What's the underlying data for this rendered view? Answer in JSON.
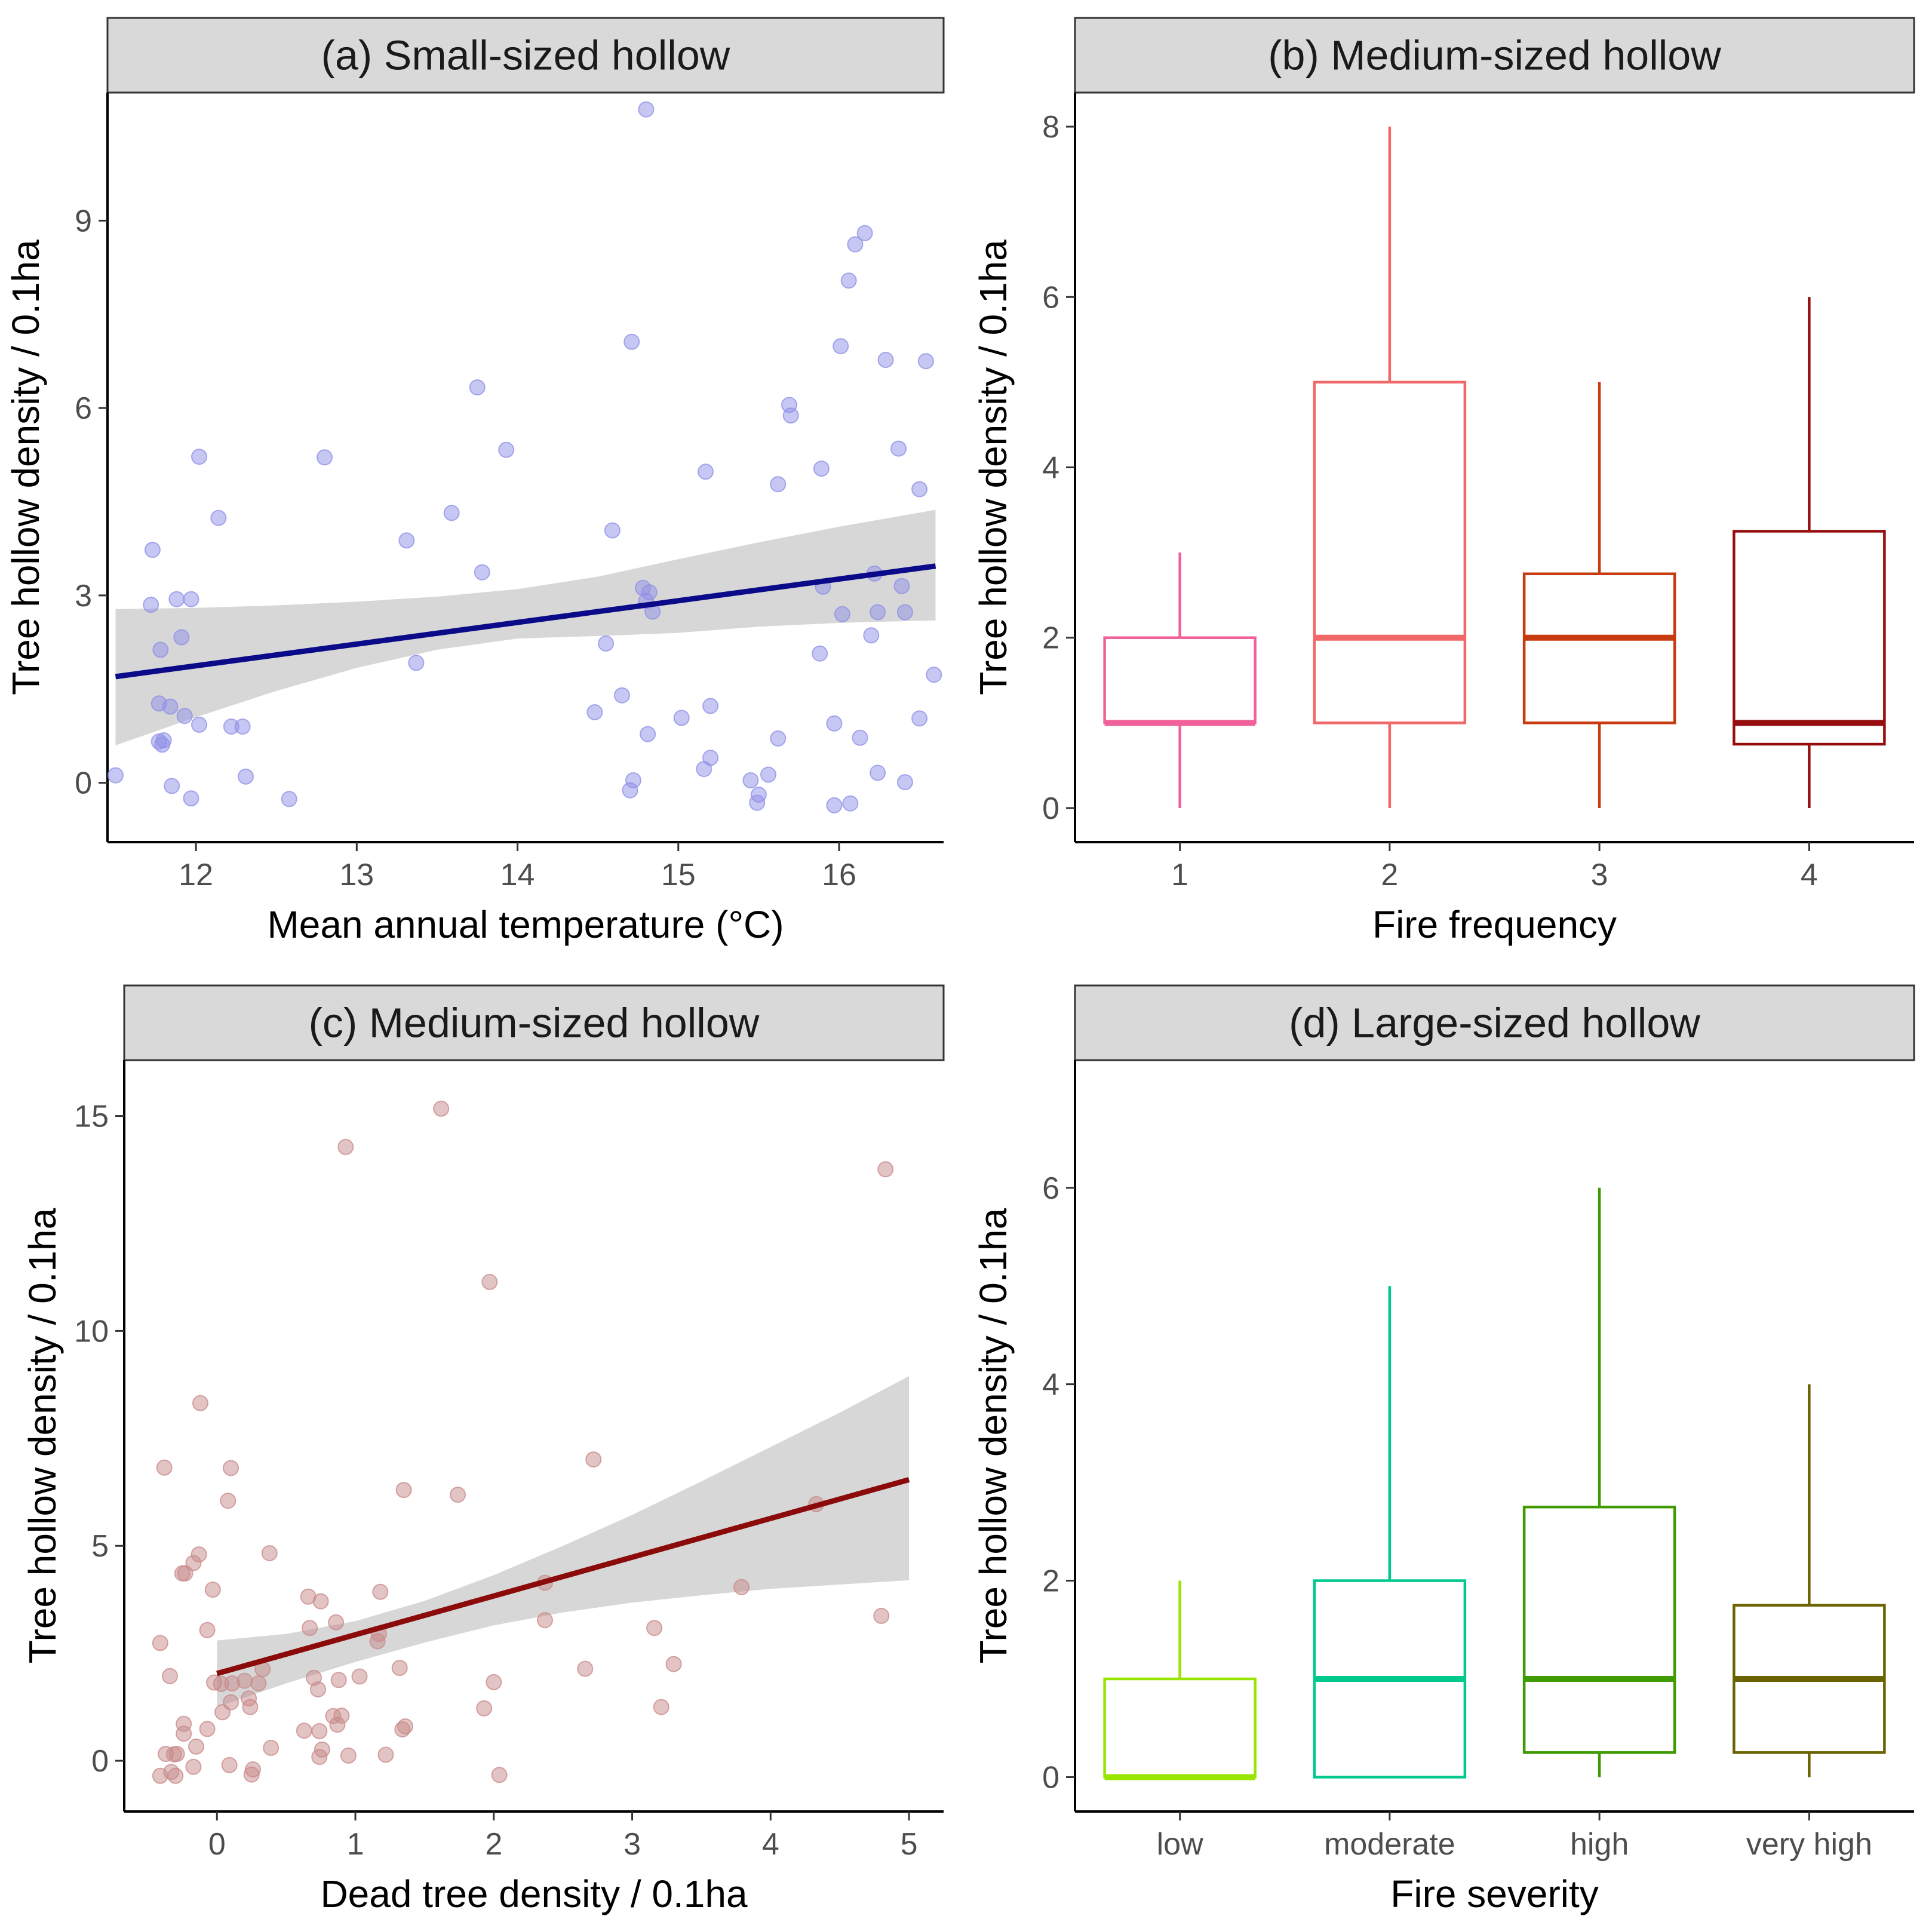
{
  "chart_data": [
    {
      "id": "a",
      "type": "scatter",
      "title": "(a) Small-sized hollow",
      "xlabel": "Mean annual temperature (°C)",
      "ylabel": "Tree hollow density / 0.1ha",
      "xlim": [
        11.45,
        16.65
      ],
      "ylim": [
        -0.95,
        11.05
      ],
      "xticks": [
        12,
        13,
        14,
        15,
        16
      ],
      "yticks": [
        0,
        3,
        6,
        9
      ],
      "xtick_labels": [
        "12",
        "13",
        "14",
        "15",
        "16"
      ],
      "ytick_labels": [
        "0",
        "3",
        "6",
        "9"
      ],
      "point_color": "#8F8FE8",
      "points": [
        [
          11.5,
          0.12
        ],
        [
          11.73,
          3.73
        ],
        [
          11.72,
          2.85
        ],
        [
          11.78,
          2.13
        ],
        [
          11.88,
          2.94
        ],
        [
          11.91,
          2.33
        ],
        [
          11.97,
          2.94
        ],
        [
          11.77,
          1.27
        ],
        [
          11.84,
          1.22
        ],
        [
          11.93,
          1.07
        ],
        [
          12.02,
          0.93
        ],
        [
          11.77,
          0.66
        ],
        [
          11.8,
          0.68
        ],
        [
          11.79,
          0.61
        ],
        [
          11.85,
          -0.05
        ],
        [
          11.97,
          -0.25
        ],
        [
          12.02,
          5.22
        ],
        [
          12.14,
          4.24
        ],
        [
          12.22,
          0.9
        ],
        [
          12.29,
          0.9
        ],
        [
          12.31,
          0.1
        ],
        [
          12.58,
          -0.26
        ],
        [
          12.8,
          5.21
        ],
        [
          13.31,
          3.88
        ],
        [
          13.37,
          1.92
        ],
        [
          13.59,
          4.32
        ],
        [
          13.75,
          6.33
        ],
        [
          13.78,
          3.37
        ],
        [
          13.93,
          5.33
        ],
        [
          14.48,
          1.13
        ],
        [
          14.55,
          2.23
        ],
        [
          14.59,
          4.04
        ],
        [
          14.65,
          1.4
        ],
        [
          14.71,
          7.06
        ],
        [
          14.7,
          -0.12
        ],
        [
          14.72,
          0.04
        ],
        [
          14.78,
          3.12
        ],
        [
          14.8,
          2.91
        ],
        [
          14.82,
          3.05
        ],
        [
          14.84,
          2.74
        ],
        [
          14.81,
          0.78
        ],
        [
          14.8,
          10.78
        ],
        [
          15.02,
          1.04
        ],
        [
          15.16,
          0.22
        ],
        [
          15.2,
          0.4
        ],
        [
          15.2,
          1.23
        ],
        [
          15.17,
          4.98
        ],
        [
          15.45,
          0.04
        ],
        [
          15.5,
          -0.19
        ],
        [
          15.49,
          -0.32
        ],
        [
          15.56,
          0.13
        ],
        [
          15.62,
          0.71
        ],
        [
          15.62,
          4.78
        ],
        [
          15.69,
          6.05
        ],
        [
          15.7,
          5.88
        ],
        [
          15.88,
          2.07
        ],
        [
          15.9,
          3.14
        ],
        [
          15.89,
          5.03
        ],
        [
          15.97,
          0.95
        ],
        [
          16.01,
          6.99
        ],
        [
          16.02,
          2.7
        ],
        [
          15.97,
          -0.36
        ],
        [
          16.07,
          -0.33
        ],
        [
          16.06,
          8.04
        ],
        [
          16.1,
          8.62
        ],
        [
          16.16,
          8.8
        ],
        [
          16.13,
          0.72
        ],
        [
          16.2,
          2.36
        ],
        [
          16.22,
          3.35
        ],
        [
          16.24,
          2.73
        ],
        [
          16.24,
          0.16
        ],
        [
          16.29,
          6.77
        ],
        [
          16.37,
          5.35
        ],
        [
          16.39,
          3.15
        ],
        [
          16.41,
          2.73
        ],
        [
          16.41,
          0.01
        ],
        [
          16.5,
          4.7
        ],
        [
          16.5,
          1.03
        ],
        [
          16.54,
          6.75
        ],
        [
          16.59,
          1.73
        ]
      ],
      "fit": {
        "x": [
          11.5,
          16.6
        ],
        "y": [
          1.7,
          3.47
        ],
        "color": "#0B0B8A"
      },
      "ci": {
        "x": [
          11.5,
          12.0,
          12.5,
          13.0,
          13.5,
          14.0,
          14.5,
          15.0,
          15.5,
          16.0,
          16.6
        ],
        "lower": [
          0.6,
          1.05,
          1.47,
          1.84,
          2.13,
          2.31,
          2.35,
          2.4,
          2.5,
          2.56,
          2.6
        ],
        "upper": [
          2.78,
          2.8,
          2.84,
          2.9,
          2.98,
          3.1,
          3.3,
          3.58,
          3.85,
          4.1,
          4.37
        ]
      }
    },
    {
      "id": "b",
      "type": "box",
      "title": "(b) Medium-sized hollow",
      "xlabel": "Fire frequency",
      "ylabel": "Tree hollow density / 0.1ha",
      "ylim": [
        -0.4,
        8.4
      ],
      "yticks": [
        0,
        2,
        4,
        6,
        8
      ],
      "ytick_labels": [
        "0",
        "2",
        "4",
        "6",
        "8"
      ],
      "categories": [
        "1",
        "2",
        "3",
        "4"
      ],
      "boxes": [
        {
          "min": 0,
          "q1": 1,
          "median": 1,
          "q3": 2,
          "max": 3,
          "color": "#F0609A"
        },
        {
          "min": 0,
          "q1": 1,
          "median": 2,
          "q3": 5,
          "max": 8,
          "color": "#F26868"
        },
        {
          "min": 0,
          "q1": 1,
          "median": 2,
          "q3": 2.75,
          "max": 5,
          "color": "#C83A10"
        },
        {
          "min": 0,
          "q1": 0.75,
          "median": 1,
          "q3": 3.25,
          "max": 6,
          "color": "#960E10"
        }
      ]
    },
    {
      "id": "c",
      "type": "scatter",
      "title": "(c) Medium-sized hollow",
      "xlabel": "Dead tree density / 0.1ha",
      "ylabel": "Tree hollow density / 0.1ha",
      "xlim": [
        -0.67,
        5.25
      ],
      "ylim": [
        -1.18,
        16.3
      ],
      "xticks": [
        0,
        1,
        2,
        3,
        4,
        5
      ],
      "yticks": [
        0,
        5,
        10,
        15
      ],
      "xtick_labels": [
        "0",
        "1",
        "2",
        "3",
        "4",
        "5"
      ],
      "ytick_labels": [
        "0",
        "5",
        "10",
        "15"
      ],
      "point_color": "#C88A8A",
      "points": [
        [
          -0.41,
          -0.35
        ],
        [
          -0.41,
          2.74
        ],
        [
          -0.38,
          6.82
        ],
        [
          -0.37,
          0.16
        ],
        [
          -0.34,
          1.97
        ],
        [
          -0.33,
          -0.26
        ],
        [
          -0.31,
          0.15
        ],
        [
          -0.3,
          -0.35
        ],
        [
          -0.29,
          0.16
        ],
        [
          -0.24,
          0.86
        ],
        [
          -0.24,
          0.63
        ],
        [
          -0.25,
          4.36
        ],
        [
          -0.23,
          4.36
        ],
        [
          -0.17,
          4.6
        ],
        [
          -0.17,
          -0.14
        ],
        [
          -0.15,
          0.33
        ],
        [
          -0.13,
          4.8
        ],
        [
          -0.12,
          8.32
        ],
        [
          -0.07,
          0.74
        ],
        [
          -0.07,
          3.04
        ],
        [
          -0.03,
          3.98
        ],
        [
          -0.02,
          1.82
        ],
        [
          0.03,
          1.79
        ],
        [
          0.04,
          1.13
        ],
        [
          0.08,
          6.05
        ],
        [
          0.09,
          -0.1
        ],
        [
          0.1,
          1.36
        ],
        [
          0.1,
          6.81
        ],
        [
          0.11,
          1.8
        ],
        [
          0.2,
          1.86
        ],
        [
          0.23,
          1.45
        ],
        [
          0.24,
          1.25
        ],
        [
          0.25,
          -0.32
        ],
        [
          0.26,
          -0.2
        ],
        [
          0.3,
          1.8
        ],
        [
          0.33,
          2.13
        ],
        [
          0.38,
          4.83
        ],
        [
          0.39,
          0.3
        ],
        [
          0.63,
          0.7
        ],
        [
          0.66,
          3.82
        ],
        [
          0.67,
          3.09
        ],
        [
          0.7,
          1.93
        ],
        [
          0.74,
          0.09
        ],
        [
          0.74,
          0.69
        ],
        [
          0.73,
          1.66
        ],
        [
          0.75,
          3.71
        ],
        [
          0.76,
          0.26
        ],
        [
          0.84,
          1.04
        ],
        [
          0.86,
          3.22
        ],
        [
          0.87,
          0.84
        ],
        [
          0.88,
          1.88
        ],
        [
          0.9,
          1.05
        ],
        [
          0.93,
          14.28
        ],
        [
          0.95,
          0.12
        ],
        [
          1.03,
          1.96
        ],
        [
          1.16,
          2.78
        ],
        [
          1.17,
          2.95
        ],
        [
          1.18,
          3.93
        ],
        [
          1.22,
          0.14
        ],
        [
          1.32,
          2.16
        ],
        [
          1.34,
          0.73
        ],
        [
          1.35,
          6.3
        ],
        [
          1.36,
          0.8
        ],
        [
          1.62,
          15.17
        ],
        [
          1.74,
          6.19
        ],
        [
          1.93,
          1.22
        ],
        [
          1.97,
          11.14
        ],
        [
          2.0,
          1.83
        ],
        [
          2.04,
          -0.33
        ],
        [
          2.37,
          3.27
        ],
        [
          2.37,
          4.14
        ],
        [
          2.66,
          2.14
        ],
        [
          2.72,
          7.01
        ],
        [
          3.16,
          3.09
        ],
        [
          3.21,
          1.25
        ],
        [
          3.3,
          2.25
        ],
        [
          3.79,
          4.04
        ],
        [
          4.33,
          5.97
        ],
        [
          4.8,
          3.37
        ],
        [
          4.83,
          13.76
        ]
      ],
      "fit": {
        "x": [
          0,
          5
        ],
        "y": [
          2.03,
          6.54
        ],
        "color": "#8B0A0A"
      },
      "ci": {
        "x": [
          0,
          0.5,
          1.0,
          1.5,
          2.0,
          2.5,
          3.0,
          3.5,
          4.0,
          4.5,
          5.0
        ],
        "lower": [
          1.25,
          1.8,
          2.3,
          2.75,
          3.15,
          3.45,
          3.68,
          3.85,
          4.0,
          4.1,
          4.2
        ],
        "upper": [
          2.8,
          2.95,
          3.25,
          3.72,
          4.32,
          5.0,
          5.72,
          6.5,
          7.3,
          8.1,
          8.95
        ]
      }
    },
    {
      "id": "d",
      "type": "box",
      "title": "(d) Large-sized hollow",
      "xlabel": "Fire severity",
      "ylabel": "Tree hollow density / 0.1ha",
      "ylim": [
        -0.35,
        7.3
      ],
      "yticks": [
        0,
        2,
        4,
        6
      ],
      "ytick_labels": [
        "0",
        "2",
        "4",
        "6"
      ],
      "categories": [
        "low",
        "moderate",
        "high",
        "very high"
      ],
      "boxes": [
        {
          "min": 0,
          "q1": 0,
          "median": 0,
          "q3": 1,
          "max": 2,
          "color": "#99E400"
        },
        {
          "min": 0,
          "q1": 0,
          "median": 1,
          "q3": 2,
          "max": 5,
          "color": "#00C98E"
        },
        {
          "min": 0,
          "q1": 0.25,
          "median": 1,
          "q3": 2.75,
          "max": 6,
          "color": "#3F9B00"
        },
        {
          "min": 0,
          "q1": 0.25,
          "median": 1,
          "q3": 1.75,
          "max": 4,
          "color": "#6B6300"
        }
      ]
    }
  ]
}
